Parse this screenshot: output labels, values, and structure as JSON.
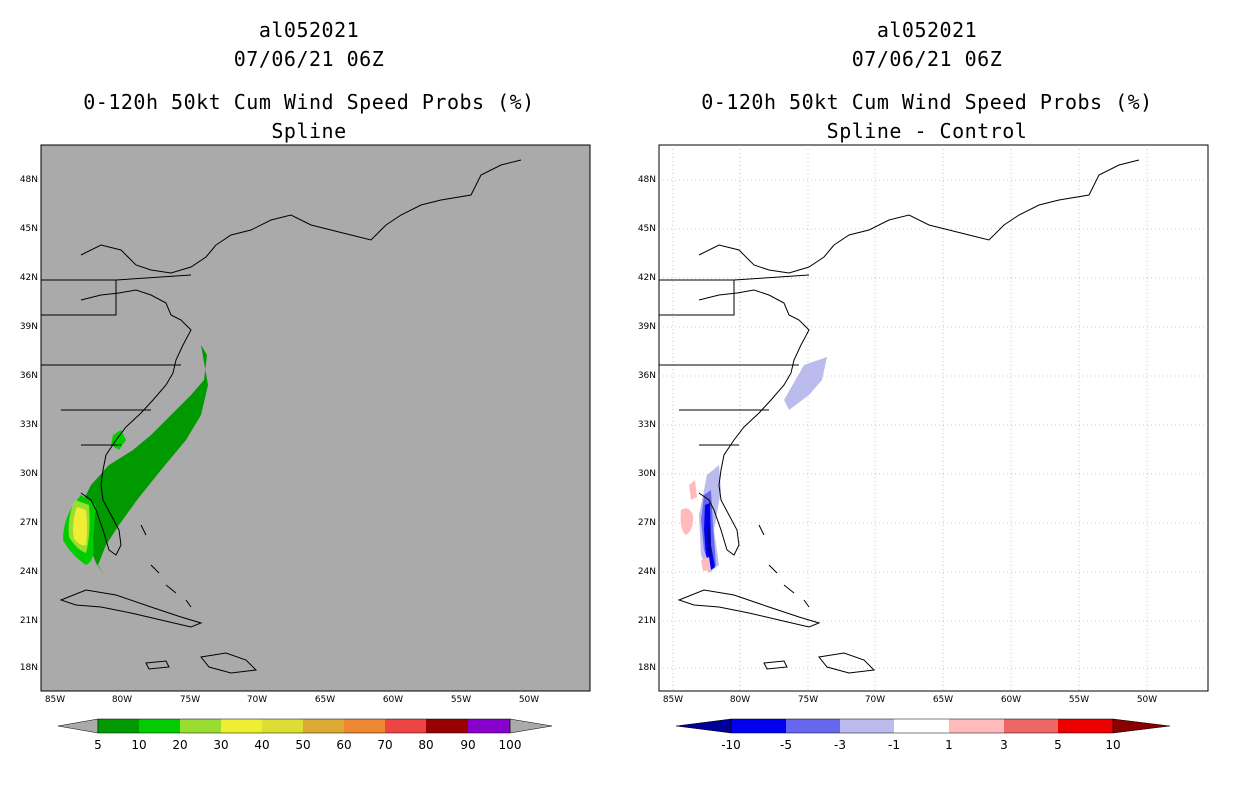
{
  "left_panel": {
    "storm_id": "al052021",
    "datetime": "07/06/21 06Z",
    "product": "0-120h 50kt Cum Wind Speed Probs (%)",
    "subtitle": "Spline",
    "background_color": "#aaaaaa",
    "colorbar": {
      "labels": [
        "5",
        "10",
        "20",
        "30",
        "40",
        "50",
        "60",
        "70",
        "80",
        "90",
        "100"
      ],
      "colors": [
        "#009900",
        "#00cc00",
        "#99dd33",
        "#eeee33",
        "#dddd33",
        "#ddaa33",
        "#ee8833",
        "#ee4444",
        "#990000",
        "#8800cc"
      ]
    }
  },
  "right_panel": {
    "storm_id": "al052021",
    "datetime": "07/06/21 06Z",
    "product": "0-120h 50kt Cum Wind Speed Probs (%)",
    "subtitle": "Spline - Control",
    "background_color": "#ffffff",
    "colorbar": {
      "labels": [
        "-10",
        "-5",
        "-3",
        "-1",
        "1",
        "3",
        "5",
        "10"
      ],
      "colors": [
        "#0000ee",
        "#6666ee",
        "#bbbbee",
        "#ffffff",
        "#ffbbbb",
        "#ee6666",
        "#ee0000"
      ],
      "low_color": "#000099",
      "high_color": "#880000"
    }
  },
  "axes": {
    "lat_labels": [
      "48N",
      "45N",
      "42N",
      "39N",
      "36N",
      "33N",
      "30N",
      "27N",
      "24N",
      "21N",
      "18N"
    ],
    "lon_labels": [
      "85W",
      "80W",
      "75W",
      "70W",
      "65W",
      "60W",
      "55W",
      "50W"
    ]
  }
}
